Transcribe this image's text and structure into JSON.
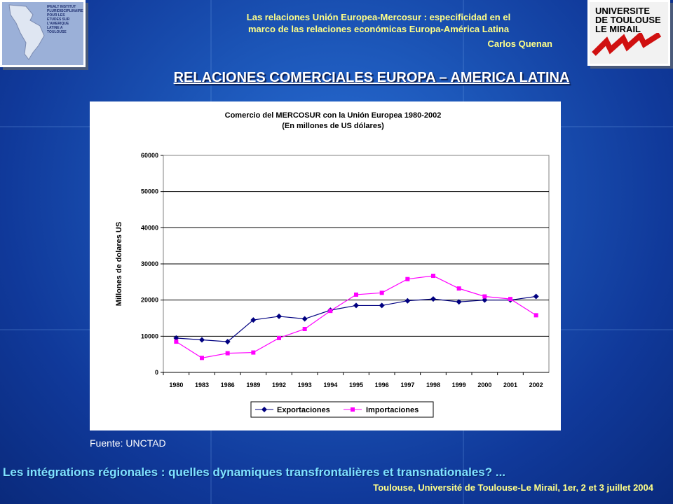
{
  "header": {
    "line1": "Las relaciones Unión Europea-Mercosur : especificidad en el",
    "line2": "marco de las relaciones económicas Europa-América Latina",
    "author": "Carlos Quenan"
  },
  "logo_left": {
    "text": "IPEALT INSTITUT PLURIDISCIPLINAIRE POUR LES ETUDES SUR L'AMERIQUE LATINE A TOULOUSE"
  },
  "logo_right": {
    "line1": "UNIVERSITE",
    "line2": "DE TOULOUSE",
    "line3": "LE MIRAIL"
  },
  "main_title": "RELACIONES COMERCIALES EUROPA – AMERICA LATINA",
  "source": "Fuente: UNCTAD",
  "footer": {
    "line1": "Les intégrations régionales : quelles dynamiques transfrontalières et transnationales? ...",
    "line2": "Toulouse, Université de Toulouse-Le Mirail, 1er, 2 et 3 juillet 2004"
  },
  "colors": {
    "export": "#000080",
    "import": "#ff00ff",
    "header_text": "#ffff88",
    "footer_text": "#7fe3ff"
  },
  "chart_data": {
    "type": "line",
    "title": "Comercio del MERCOSUR con la Unión Europea 1980-2002",
    "subtitle": "(En millones de US dólares)",
    "ylabel": "Millones de dolares US",
    "xlabel": "",
    "categories": [
      "1980",
      "1983",
      "1986",
      "1989",
      "1992",
      "1993",
      "1994",
      "1995",
      "1996",
      "1997",
      "1998",
      "1999",
      "2000",
      "2001",
      "2002"
    ],
    "ylim": [
      0,
      60000
    ],
    "yticks": [
      0,
      10000,
      20000,
      30000,
      40000,
      50000,
      60000
    ],
    "grid": true,
    "legend_position": "bottom",
    "series": [
      {
        "name": "Exportaciones",
        "marker": "diamond",
        "values": [
          9500,
          9000,
          8500,
          14500,
          15500,
          14800,
          17200,
          18500,
          18500,
          19800,
          20300,
          19500,
          20000,
          20000,
          21000
        ]
      },
      {
        "name": "Importaciones",
        "marker": "square",
        "values": [
          8500,
          4000,
          5300,
          5500,
          9500,
          12000,
          17000,
          21500,
          22000,
          25800,
          26700,
          23200,
          21000,
          20300,
          15800
        ]
      }
    ]
  }
}
